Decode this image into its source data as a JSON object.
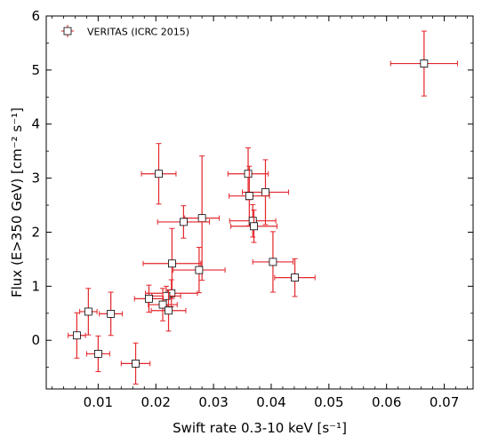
{
  "chart_data": {
    "type": "scatter",
    "xlabel": "Swift rate 0.3-10 keV [s⁻¹]",
    "ylabel": "Flux (E>350 GeV) [cm⁻² s⁻¹]",
    "xlim": [
      0.001,
      0.075
    ],
    "ylim": [
      -0.9,
      6.0
    ],
    "xticks": [
      0.01,
      0.02,
      0.03,
      0.04,
      0.05,
      0.06,
      0.07
    ],
    "xtick_labels": [
      "0.01",
      "0.02",
      "0.03",
      "0.04",
      "0.05",
      "0.06",
      "0.07"
    ],
    "yticks": [
      0,
      1,
      2,
      3,
      4,
      5,
      6
    ],
    "ytick_labels": [
      "0",
      "1",
      "2",
      "3",
      "4",
      "5",
      "6"
    ],
    "legend_position": "top-left",
    "marker_color": "#e3262b",
    "series": [
      {
        "name": "VERITAS (ICRC 2015)",
        "points": [
          {
            "x": 0.0665,
            "y": 5.12,
            "xerr": 0.0058,
            "yerr": 0.6
          },
          {
            "x": 0.0205,
            "y": 3.08,
            "xerr": 0.003,
            "yerr": 0.56
          },
          {
            "x": 0.036,
            "y": 3.08,
            "xerr": 0.0035,
            "yerr": 0.48
          },
          {
            "x": 0.039,
            "y": 2.74,
            "xerr": 0.004,
            "yerr": 0.6
          },
          {
            "x": 0.0362,
            "y": 2.67,
            "xerr": 0.0035,
            "yerr": 0.55
          },
          {
            "x": 0.028,
            "y": 2.26,
            "xerr": 0.003,
            "yerr": 1.15
          },
          {
            "x": 0.0248,
            "y": 2.19,
            "xerr": 0.0045,
            "yerr": 0.3
          },
          {
            "x": 0.0368,
            "y": 2.21,
            "xerr": 0.004,
            "yerr": 0.3
          },
          {
            "x": 0.037,
            "y": 2.11,
            "xerr": 0.004,
            "yerr": 0.3
          },
          {
            "x": 0.0403,
            "y": 1.45,
            "xerr": 0.0035,
            "yerr": 0.56
          },
          {
            "x": 0.0228,
            "y": 1.42,
            "xerr": 0.005,
            "yerr": 0.65
          },
          {
            "x": 0.0275,
            "y": 1.3,
            "xerr": 0.0045,
            "yerr": 0.42
          },
          {
            "x": 0.0441,
            "y": 1.16,
            "xerr": 0.0035,
            "yerr": 0.35
          },
          {
            "x": 0.0227,
            "y": 0.87,
            "xerr": 0.0045,
            "yerr": 0.25
          },
          {
            "x": 0.0218,
            "y": 0.82,
            "xerr": 0.0025,
            "yerr": 0.18
          },
          {
            "x": 0.0188,
            "y": 0.77,
            "xerr": 0.0025,
            "yerr": 0.25
          },
          {
            "x": 0.0212,
            "y": 0.66,
            "xerr": 0.0025,
            "yerr": 0.3
          },
          {
            "x": 0.0222,
            "y": 0.55,
            "xerr": 0.003,
            "yerr": 0.38
          },
          {
            "x": 0.0083,
            "y": 0.53,
            "xerr": 0.0015,
            "yerr": 0.43
          },
          {
            "x": 0.0122,
            "y": 0.49,
            "xerr": 0.002,
            "yerr": 0.4
          },
          {
            "x": 0.0063,
            "y": 0.09,
            "xerr": 0.0015,
            "yerr": 0.42
          },
          {
            "x": 0.01,
            "y": -0.25,
            "xerr": 0.002,
            "yerr": 0.33
          },
          {
            "x": 0.0165,
            "y": -0.43,
            "xerr": 0.0025,
            "yerr": 0.38
          }
        ]
      }
    ]
  }
}
